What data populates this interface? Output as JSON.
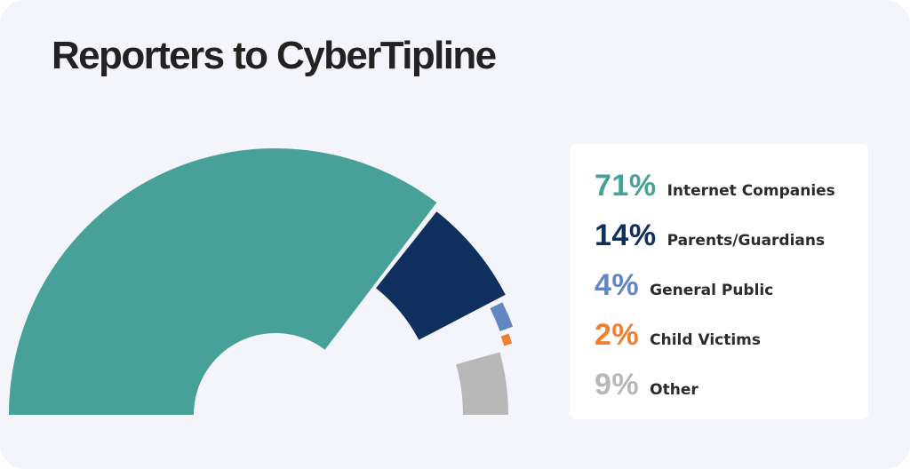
{
  "chart_data": {
    "type": "pie",
    "variant": "half-donut",
    "title": "Reporters to CyberTipline",
    "slices": [
      {
        "label": "Internet Companies",
        "pct_label": "71%",
        "value": 71,
        "color": "#48a198"
      },
      {
        "label": "Parents/Guardians",
        "pct_label": "14%",
        "value": 14,
        "color": "#0f2f5e"
      },
      {
        "label": "General Public",
        "pct_label": "4%",
        "value": 4,
        "color": "#6286c2"
      },
      {
        "label": "Child Victims",
        "pct_label": "2%",
        "value": 2,
        "color": "#f07f2f"
      },
      {
        "label": "Other",
        "pct_label": "9%",
        "value": 9,
        "color": "#b8b8b8"
      }
    ],
    "legend_position": "right"
  }
}
